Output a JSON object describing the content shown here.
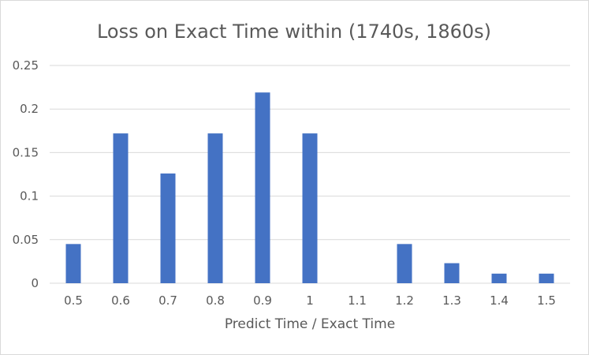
{
  "chart_data": {
    "type": "bar",
    "title": "Loss on Exact Time within (1740s, 1860s)",
    "xlabel": "Predict Time / Exact Time",
    "ylabel": "",
    "categories": [
      "0.5",
      "0.6",
      "0.7",
      "0.8",
      "0.9",
      "1",
      "1.1",
      "1.2",
      "1.3",
      "1.4",
      "1.5"
    ],
    "values": [
      0.045,
      0.172,
      0.126,
      0.172,
      0.219,
      0.172,
      0,
      0.045,
      0.023,
      0.011,
      0.011
    ],
    "ylim": [
      0,
      0.25
    ],
    "yticks": [
      "0",
      "0.05",
      "0.1",
      "0.15",
      "0.2",
      "0.25"
    ],
    "ytick_values": [
      0,
      0.05,
      0.1,
      0.15,
      0.2,
      0.25
    ],
    "grid": true,
    "legend": "none",
    "colors": {
      "bar": "#4472c4",
      "grid": "#d9d9d9",
      "text": "#595959"
    }
  }
}
